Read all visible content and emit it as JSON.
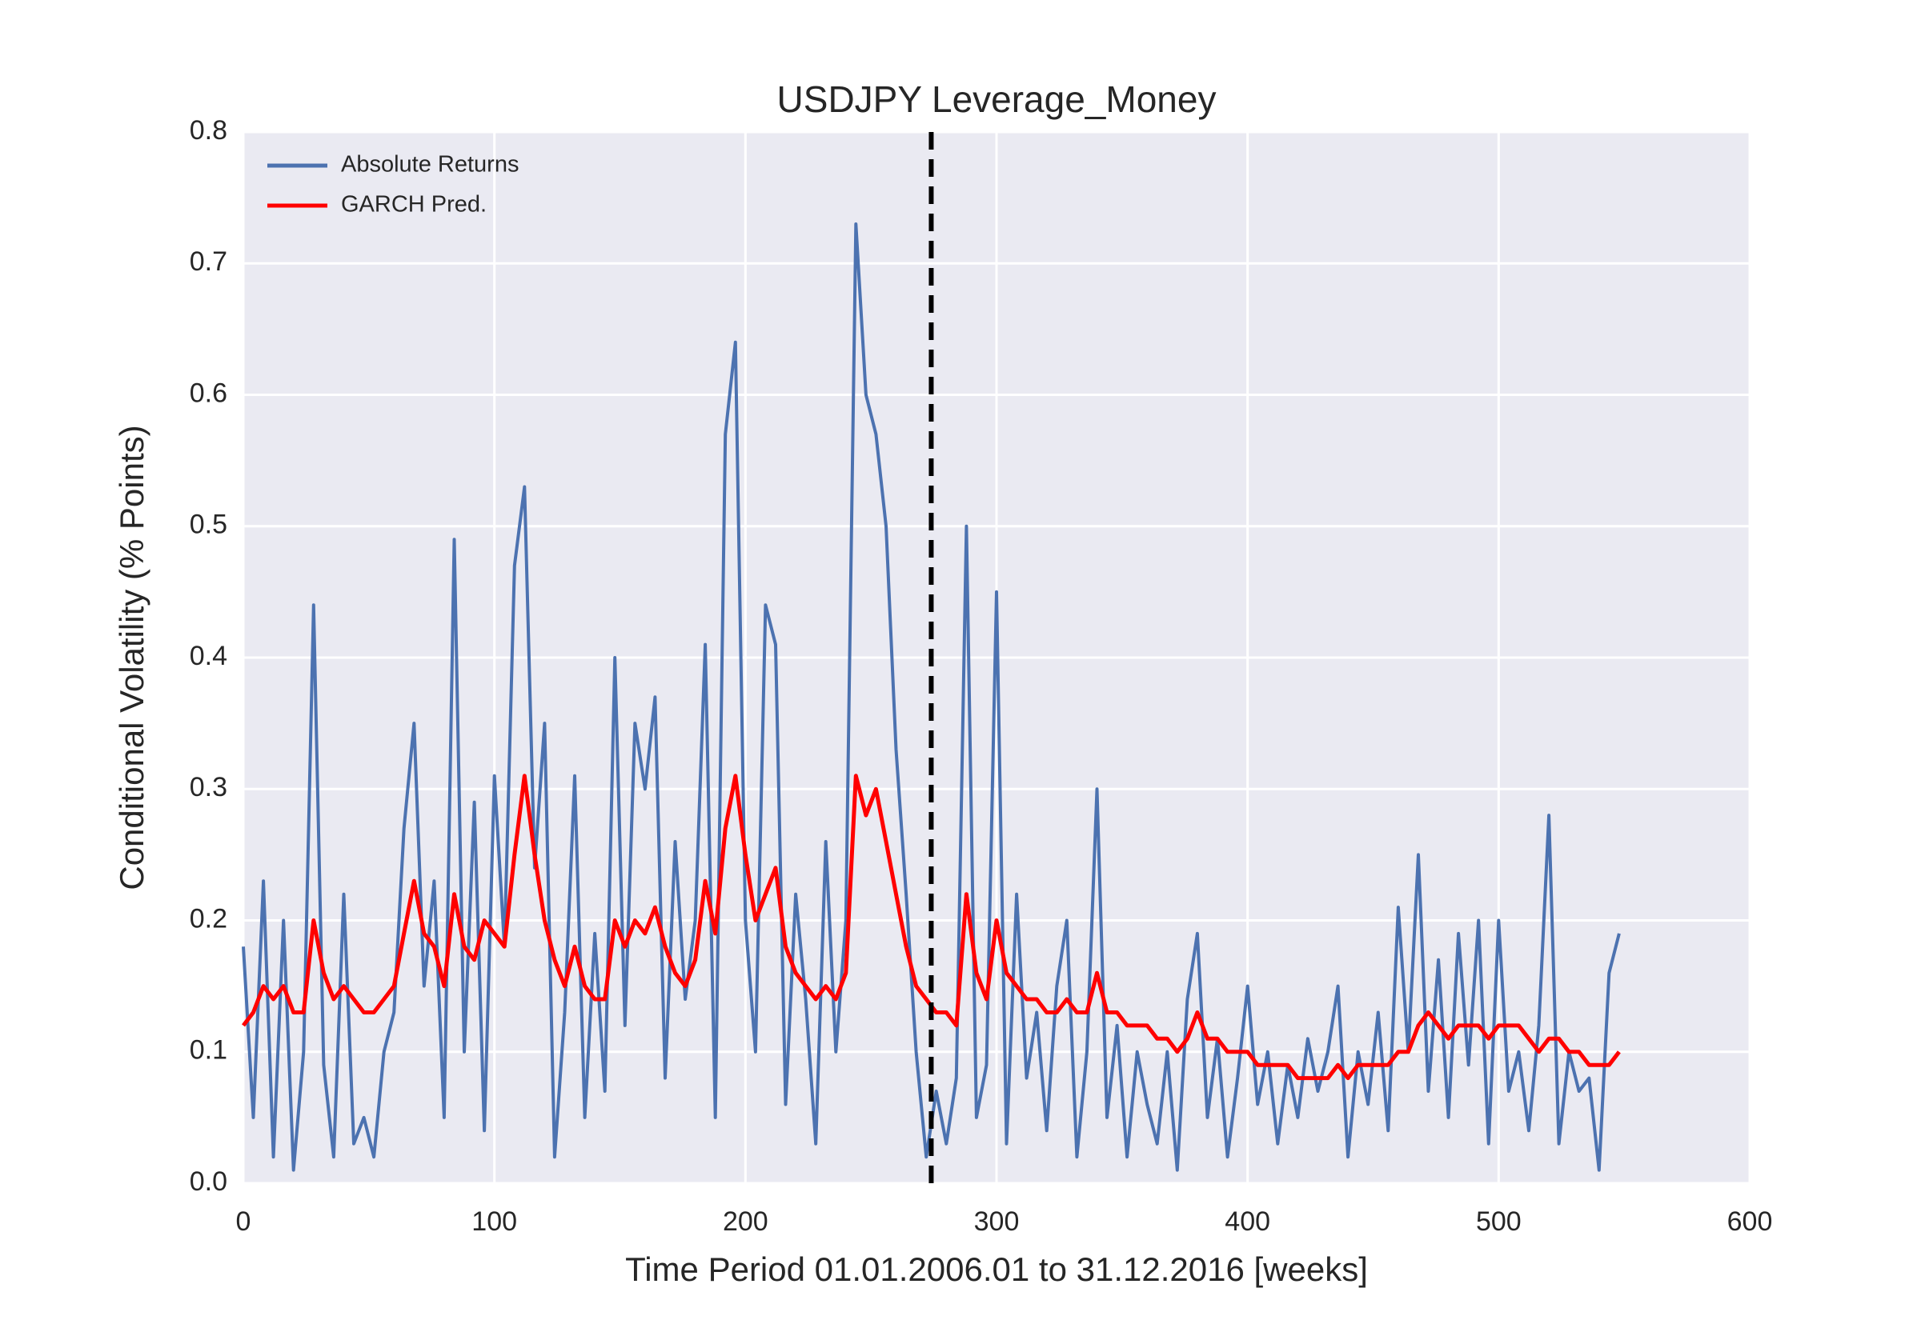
{
  "chart_data": {
    "type": "line",
    "title": "USDJPY Leverage_Money",
    "x_label": "Time Period 01.01.2006.01 to 31.12.2016 [weeks]",
    "y_label": "Conditional Volatility (% Points)",
    "x": [
      0,
      4,
      8,
      12,
      16,
      20,
      24,
      28,
      32,
      36,
      40,
      44,
      48,
      52,
      56,
      60,
      64,
      68,
      72,
      76,
      80,
      84,
      88,
      92,
      96,
      100,
      104,
      108,
      112,
      116,
      120,
      124,
      128,
      132,
      136,
      140,
      144,
      148,
      152,
      156,
      160,
      164,
      168,
      172,
      176,
      180,
      184,
      188,
      192,
      196,
      200,
      204,
      208,
      212,
      216,
      220,
      224,
      228,
      232,
      236,
      240,
      244,
      248,
      252,
      256,
      260,
      264,
      268,
      272,
      276,
      280,
      284,
      288,
      292,
      296,
      300,
      304,
      308,
      312,
      316,
      320,
      324,
      328,
      332,
      336,
      340,
      344,
      348,
      352,
      356,
      360,
      364,
      368,
      372,
      376,
      380,
      384,
      388,
      392,
      396,
      400,
      404,
      408,
      412,
      416,
      420,
      424,
      428,
      432,
      436,
      440,
      444,
      448,
      452,
      456,
      460,
      464,
      468,
      472,
      476,
      480,
      484,
      488,
      492,
      496,
      500,
      504,
      508,
      512,
      516,
      520,
      524,
      528,
      532,
      536,
      540,
      544,
      548
    ],
    "series": [
      {
        "name": "Absolute Returns",
        "color": "#4c72b0",
        "values": [
          0.18,
          0.05,
          0.23,
          0.02,
          0.2,
          0.01,
          0.1,
          0.44,
          0.09,
          0.02,
          0.22,
          0.03,
          0.05,
          0.02,
          0.1,
          0.13,
          0.27,
          0.35,
          0.15,
          0.23,
          0.05,
          0.49,
          0.1,
          0.29,
          0.04,
          0.31,
          0.18,
          0.47,
          0.53,
          0.24,
          0.35,
          0.02,
          0.13,
          0.31,
          0.05,
          0.19,
          0.07,
          0.4,
          0.12,
          0.35,
          0.3,
          0.37,
          0.08,
          0.26,
          0.14,
          0.2,
          0.41,
          0.05,
          0.57,
          0.64,
          0.2,
          0.1,
          0.44,
          0.41,
          0.06,
          0.22,
          0.14,
          0.03,
          0.26,
          0.1,
          0.2,
          0.73,
          0.6,
          0.57,
          0.5,
          0.33,
          0.22,
          0.1,
          0.02,
          0.07,
          0.03,
          0.08,
          0.5,
          0.05,
          0.09,
          0.45,
          0.03,
          0.22,
          0.08,
          0.13,
          0.04,
          0.15,
          0.2,
          0.02,
          0.1,
          0.3,
          0.05,
          0.12,
          0.02,
          0.1,
          0.06,
          0.03,
          0.1,
          0.01,
          0.14,
          0.19,
          0.05,
          0.11,
          0.02,
          0.08,
          0.15,
          0.06,
          0.1,
          0.03,
          0.09,
          0.05,
          0.11,
          0.07,
          0.1,
          0.15,
          0.02,
          0.1,
          0.06,
          0.13,
          0.04,
          0.21,
          0.1,
          0.25,
          0.07,
          0.17,
          0.05,
          0.19,
          0.09,
          0.2,
          0.03,
          0.2,
          0.07,
          0.1,
          0.04,
          0.12,
          0.28,
          0.03,
          0.1,
          0.07,
          0.08,
          0.01,
          0.16,
          0.19
        ]
      },
      {
        "name": "GARCH Pred.",
        "color": "#ff0000",
        "values": [
          0.12,
          0.13,
          0.15,
          0.14,
          0.15,
          0.13,
          0.13,
          0.2,
          0.16,
          0.14,
          0.15,
          0.14,
          0.13,
          0.13,
          0.14,
          0.15,
          0.19,
          0.23,
          0.19,
          0.18,
          0.15,
          0.22,
          0.18,
          0.17,
          0.2,
          0.19,
          0.18,
          0.25,
          0.31,
          0.25,
          0.2,
          0.17,
          0.15,
          0.18,
          0.15,
          0.14,
          0.14,
          0.2,
          0.18,
          0.2,
          0.19,
          0.21,
          0.18,
          0.16,
          0.15,
          0.17,
          0.23,
          0.19,
          0.27,
          0.31,
          0.25,
          0.2,
          0.22,
          0.24,
          0.18,
          0.16,
          0.15,
          0.14,
          0.15,
          0.14,
          0.16,
          0.31,
          0.28,
          0.3,
          0.26,
          0.22,
          0.18,
          0.15,
          0.14,
          0.13,
          0.13,
          0.12,
          0.22,
          0.16,
          0.14,
          0.2,
          0.16,
          0.15,
          0.14,
          0.14,
          0.13,
          0.13,
          0.14,
          0.13,
          0.13,
          0.16,
          0.13,
          0.13,
          0.12,
          0.12,
          0.12,
          0.11,
          0.11,
          0.1,
          0.11,
          0.13,
          0.11,
          0.11,
          0.1,
          0.1,
          0.1,
          0.09,
          0.09,
          0.09,
          0.09,
          0.08,
          0.08,
          0.08,
          0.08,
          0.09,
          0.08,
          0.09,
          0.09,
          0.09,
          0.09,
          0.1,
          0.1,
          0.12,
          0.13,
          0.12,
          0.11,
          0.12,
          0.12,
          0.12,
          0.11,
          0.12,
          0.12,
          0.12,
          0.11,
          0.1,
          0.11,
          0.11,
          0.1,
          0.1,
          0.09,
          0.09,
          0.09,
          0.1
        ]
      }
    ],
    "vline_x": 274,
    "xlim": [
      0,
      600
    ],
    "xticks": [
      0,
      100,
      200,
      300,
      400,
      500,
      600
    ],
    "ylim": [
      0,
      0.8
    ],
    "yticks": [
      {
        "value": 0,
        "label": "0.0"
      },
      0.1,
      0.2,
      0.3,
      0.4,
      0.5,
      0.6,
      0.7,
      0.8
    ],
    "grid": true,
    "legend": "upper left"
  }
}
